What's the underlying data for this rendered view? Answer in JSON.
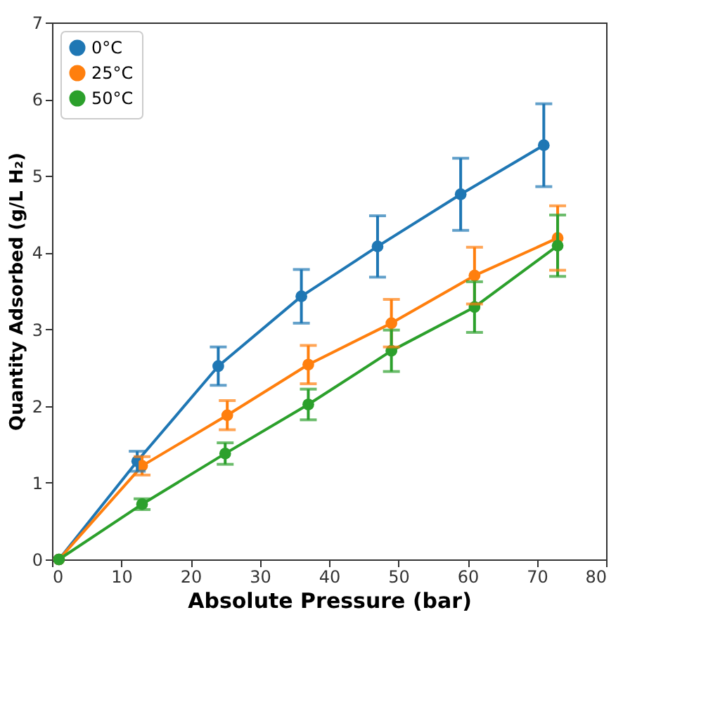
{
  "chart_data": {
    "type": "line",
    "xlabel": "Absolute Pressure (bar)",
    "ylabel": "Quantity Adsorbed (g/L H₂)",
    "xlim": [
      0,
      80
    ],
    "xticks": [
      0,
      10,
      20,
      30,
      40,
      50,
      60,
      70,
      80
    ],
    "ylim": [
      0,
      7
    ],
    "yticks": [
      0,
      1,
      2,
      3,
      4,
      5,
      6,
      7
    ],
    "grid": false,
    "legend": "top left",
    "marker": "circle",
    "line_style": "solid",
    "series": [
      {
        "name": "0°C",
        "color": "#1f77b4",
        "x": [
          1,
          12.3,
          24,
          36,
          47,
          59,
          71
        ],
        "values": [
          0,
          1.28,
          2.52,
          3.43,
          4.08,
          4.76,
          5.4
        ],
        "errors": [
          null,
          0.13,
          0.25,
          0.35,
          0.4,
          0.47,
          0.54
        ]
      },
      {
        "name": "25°C",
        "color": "#ff7f0e",
        "x": [
          1,
          13,
          25.3,
          37,
          49,
          61,
          73
        ],
        "values": [
          0,
          1.22,
          1.88,
          2.54,
          3.08,
          3.7,
          4.19
        ],
        "errors": [
          null,
          0.12,
          0.19,
          0.25,
          0.31,
          0.37,
          0.42
        ]
      },
      {
        "name": "50°C",
        "color": "#2ca02c",
        "x": [
          1,
          13,
          25,
          37,
          49,
          61,
          73
        ],
        "values": [
          0,
          0.72,
          1.38,
          2.02,
          2.72,
          3.29,
          4.09
        ],
        "errors": [
          null,
          0.07,
          0.14,
          0.2,
          0.27,
          0.33,
          0.4
        ]
      }
    ]
  }
}
